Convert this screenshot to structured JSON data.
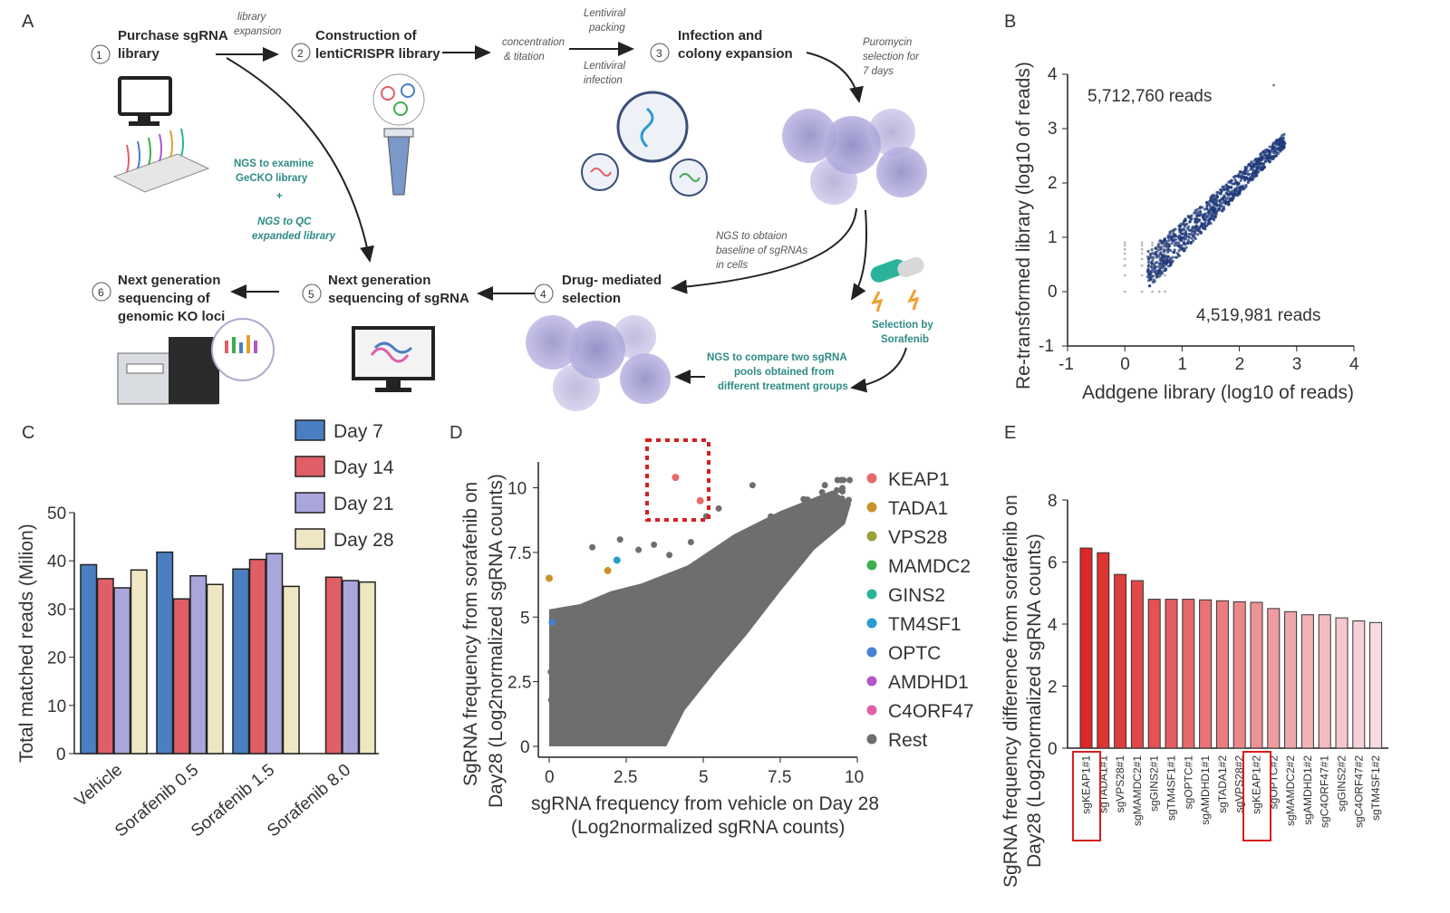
{
  "panels": {
    "a": "A",
    "b": "B",
    "c": "C",
    "d": "D",
    "e": "E"
  },
  "panel_a": {
    "steps": [
      {
        "num": "1",
        "line1": "Purchase sgRNA",
        "line2": "library"
      },
      {
        "num": "2",
        "line1": "Construction of",
        "line2": "lentiCRISPR library"
      },
      {
        "num": "3",
        "line1": "Infection and",
        "line2": "colony expansion"
      },
      {
        "num": "4",
        "line1": "Drug- mediated",
        "line2": "selection"
      },
      {
        "num": "5",
        "line1": "Next generation",
        "line2": "sequencing of sgRNA"
      },
      {
        "num": "6",
        "line1": "Next generation",
        "line2": "sequencing of",
        "line3": "genomic KO loci"
      }
    ],
    "notes": {
      "library_expansion": [
        "library",
        "expansion"
      ],
      "concentration": [
        "concentration",
        "& titation"
      ],
      "lentiviral_packing": [
        "Lentiviral",
        "packing"
      ],
      "lentiviral_infection": [
        "Lentiviral",
        "infection"
      ],
      "puromycin": [
        "Puromycin",
        "selection for",
        "7 days"
      ],
      "baseline": [
        "NGS to obtaion",
        "baseline of sgRNAs",
        "in cells"
      ]
    },
    "teal": {
      "examine": [
        "NGS to examine",
        "GeCKO library",
        "+",
        "NGS to QC",
        "expanded library"
      ],
      "selection": [
        "Selection by",
        "Sorafenib"
      ],
      "compare": [
        "NGS to compare two sgRNA",
        "pools obtained from",
        "different treatment groups"
      ]
    }
  },
  "chart_data": [
    {
      "panel": "B",
      "type": "scatter",
      "xlabel": "Addgene library (log10 of reads)",
      "ylabel": "Re-transformed library (log10 of reads)",
      "xlim": [
        -1,
        4
      ],
      "ylim": [
        -1,
        4
      ],
      "xticks": [
        "-1",
        "0",
        "1",
        "2",
        "3",
        "4"
      ],
      "yticks": [
        "-1",
        "0",
        "1",
        "2",
        "3",
        "4"
      ],
      "annotations": [
        "5,712,760 reads",
        "4,519,981 reads"
      ],
      "color": "#1f3a7a"
    },
    {
      "panel": "C",
      "type": "bar",
      "ylabel": "Total matched reads (Milion)",
      "ylim": [
        0,
        50
      ],
      "yticks": [
        "0",
        "10",
        "20",
        "30",
        "40",
        "50"
      ],
      "categories": [
        "Vehicle",
        "Sorafenib 0.5",
        "Sorafenib 1.5",
        "Sorafenib 8.0"
      ],
      "series": [
        {
          "name": "Day 7",
          "color": "#4a7fc1",
          "values": [
            39.2,
            41.8,
            38.3,
            null
          ]
        },
        {
          "name": "Day 14",
          "color": "#e05f66",
          "values": [
            36.3,
            32.1,
            40.3,
            36.6
          ]
        },
        {
          "name": "Day 21",
          "color": "#a9a6dc",
          "values": [
            34.4,
            36.9,
            41.5,
            35.9
          ]
        },
        {
          "name": "Day 28",
          "color": "#efe6c4",
          "values": [
            38.1,
            35.1,
            34.7,
            35.6
          ]
        }
      ]
    },
    {
      "panel": "D",
      "type": "scatter",
      "xlabel": "sgRNA  frequency from vehicle on Day 28",
      "xlabel2": "(Log2normalized sgRNA counts)",
      "ylabel": "SgRNA  frequency from sorafenib on",
      "ylabel2": "Day28  (Log2normalized sgRNA counts)",
      "xlim": [
        0,
        10
      ],
      "ylim": [
        0,
        11
      ],
      "xticks": [
        "0",
        "2.5",
        "5",
        "7.5",
        "10"
      ],
      "yticks": [
        "0",
        "2.5",
        "5",
        "7.5",
        "10"
      ],
      "legend": [
        {
          "name": "KEAP1",
          "color": "#e86a6a"
        },
        {
          "name": "TADA1",
          "color": "#c8922a"
        },
        {
          "name": "VPS28",
          "color": "#9aa03a"
        },
        {
          "name": "MAMDC2",
          "color": "#3cae4a"
        },
        {
          "name": "GINS2",
          "color": "#2bb39a"
        },
        {
          "name": "TM4SF1",
          "color": "#2a9bd0"
        },
        {
          "name": "OPTC",
          "color": "#4a7fd4"
        },
        {
          "name": "AMDHD1",
          "color": "#b255c8"
        },
        {
          "name": "C4ORF47",
          "color": "#e05fa8"
        },
        {
          "name": "Rest",
          "color": "#6e6e6e"
        }
      ],
      "highlights": [
        {
          "gene": "KEAP1",
          "x": 4.1,
          "y": 10.4
        },
        {
          "gene": "KEAP1",
          "x": 4.9,
          "y": 9.5
        },
        {
          "gene": "TADA1",
          "x": 0.0,
          "y": 6.5
        },
        {
          "gene": "TADA1",
          "x": 1.9,
          "y": 6.8
        },
        {
          "gene": "TM4SF1",
          "x": 2.2,
          "y": 7.2
        },
        {
          "gene": "OPTC",
          "x": 0.1,
          "y": 4.8
        }
      ]
    },
    {
      "panel": "E",
      "type": "bar",
      "ylabel": "SgRNA  frequency difference from  sorafenib on",
      "ylabel2": "Day28  (Log2normalized sgRNA counts)",
      "ylim": [
        0,
        8
      ],
      "yticks": [
        "0",
        "2",
        "4",
        "6",
        "8"
      ],
      "categories": [
        "sgKEAP1#1",
        "sgTADA1#1",
        "sgVPS28#1",
        "sgMAMDC2#1",
        "sgGINS2#1",
        "sgTM4SF1#1",
        "sgOPTC#1",
        "sgAMDHD1#1",
        "sgTADA1#2",
        "sgVPS28#2",
        "sgKEAP1#2",
        "sgOPTC#2",
        "sgMAMDC2#2",
        "sgAMDHD1#2",
        "sgC4ORF47#1",
        "sgGINS2#2",
        "sgC4ORF47#2",
        "sgTM4SF1#2"
      ],
      "values": [
        6.45,
        6.3,
        5.6,
        5.4,
        4.8,
        4.8,
        4.8,
        4.78,
        4.75,
        4.72,
        4.7,
        4.5,
        4.4,
        4.3,
        4.3,
        4.2,
        4.1,
        4.05
      ],
      "boxed": [
        "sgKEAP1#1",
        "sgKEAP1#2"
      ]
    }
  ]
}
